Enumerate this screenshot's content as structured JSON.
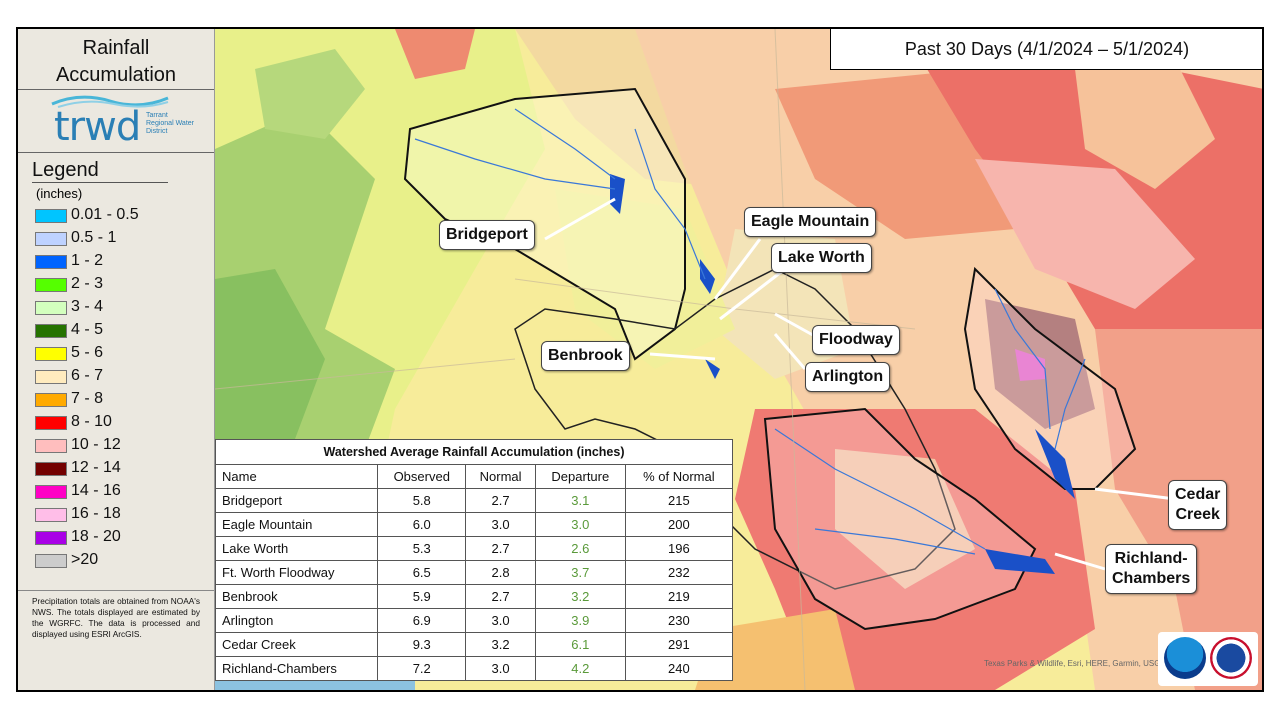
{
  "sidebar": {
    "title_line1": "Rainfall",
    "title_line2": "Accumulation",
    "logo": {
      "word": "trwd",
      "subtitle": "Tarrant Regional Water District"
    },
    "legend_title": "Legend",
    "legend_units": "(inches)",
    "legend_items": [
      {
        "label": "0.01 - 0.5",
        "color": "#00c5ff"
      },
      {
        "label": "0.5 - 1",
        "color": "#bed2ff"
      },
      {
        "label": "1 - 2",
        "color": "#0064ff"
      },
      {
        "label": "2 - 3",
        "color": "#55ff00"
      },
      {
        "label": "3 - 4",
        "color": "#d3ffbe"
      },
      {
        "label": "4 - 5",
        "color": "#267300"
      },
      {
        "label": "5 - 6",
        "color": "#ffff00"
      },
      {
        "label": "6 - 7",
        "color": "#ffebbe"
      },
      {
        "label": "7 - 8",
        "color": "#ffaa00"
      },
      {
        "label": "8 - 10",
        "color": "#ff0000"
      },
      {
        "label": "10 - 12",
        "color": "#ffbebe"
      },
      {
        "label": "12 - 14",
        "color": "#730000"
      },
      {
        "label": "14 - 16",
        "color": "#ff00c5"
      },
      {
        "label": "16 - 18",
        "color": "#ffbee8"
      },
      {
        "label": "18 - 20",
        "color": "#a900e6"
      },
      {
        "label": ">20",
        "color": "#cccccc"
      }
    ],
    "note": "Precipitation totals are obtained from NOAA's NWS. The totals displayed are estimated by the WGRFC. The data is processed and displayed using ESRI ArcGIS."
  },
  "header": {
    "period": "Past 30 Days (4/1/2024 – 5/1/2024)"
  },
  "map": {
    "callouts": {
      "bridgeport": "Bridgeport",
      "eagle_mountain": "Eagle Mountain",
      "lake_worth": "Lake Worth",
      "floodway": "Floodway",
      "benbrook": "Benbrook",
      "arlington": "Arlington",
      "cedar_creek_1": "Cedar",
      "cedar_creek_2": "Creek",
      "richland_1": "Richland-",
      "richland_2": "Chambers"
    },
    "attribution": "Texas Parks & Wildlife, Esri, HERE, Garmin, USGS,",
    "agency_logos": [
      "noaa-icon",
      "nws-icon"
    ]
  },
  "table": {
    "caption": "Watershed Average Rainfall Accumulation (inches)",
    "columns": [
      "Name",
      "Observed",
      "Normal",
      "Departure",
      "% of Normal"
    ],
    "rows": [
      [
        "Bridgeport",
        "5.8",
        "2.7",
        "3.1",
        "215"
      ],
      [
        "Eagle Mountain",
        "6.0",
        "3.0",
        "3.0",
        "200"
      ],
      [
        "Lake Worth",
        "5.3",
        "2.7",
        "2.6",
        "196"
      ],
      [
        "Ft. Worth Floodway",
        "6.5",
        "2.8",
        "3.7",
        "232"
      ],
      [
        "Benbrook",
        "5.9",
        "2.7",
        "3.2",
        "219"
      ],
      [
        "Arlington",
        "6.9",
        "3.0",
        "3.9",
        "230"
      ],
      [
        "Cedar Creek",
        "9.3",
        "3.2",
        "6.1",
        "291"
      ],
      [
        "Richland-Chambers",
        "7.2",
        "3.0",
        "4.2",
        "240"
      ]
    ]
  }
}
